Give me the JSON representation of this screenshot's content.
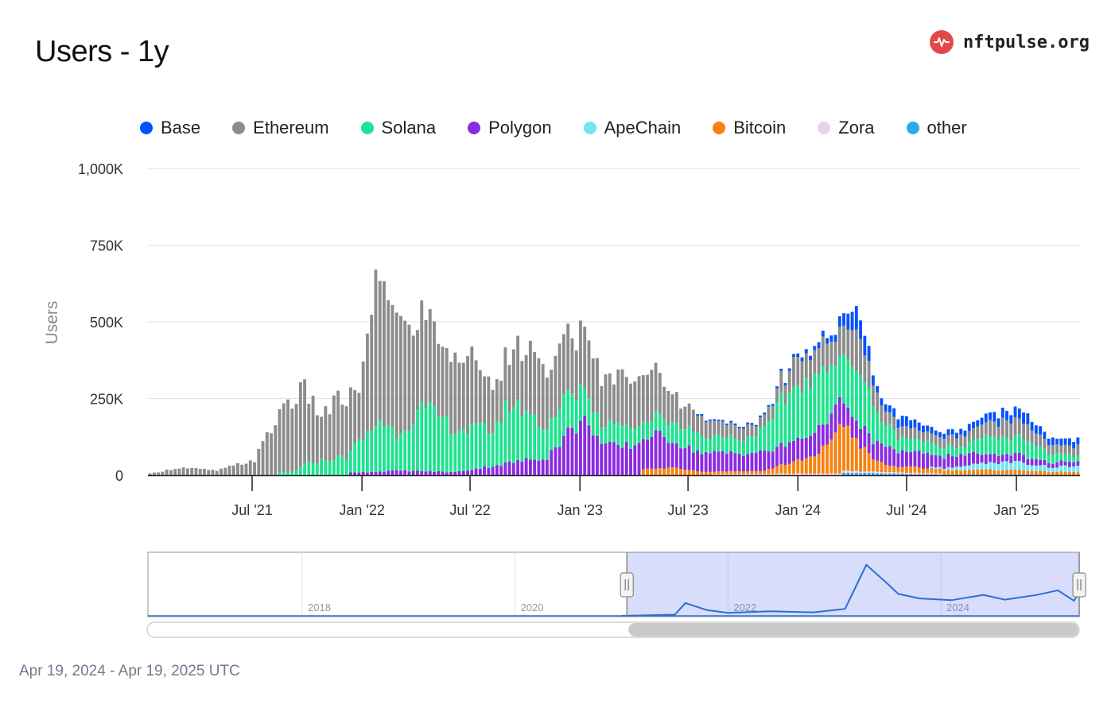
{
  "header": {
    "title": "Users - 1y",
    "brand_name": "nftpulse.org",
    "brand_icon": "pulse-heartbeat-icon",
    "brand_color": "#e24a4a"
  },
  "legend": [
    {
      "label": "Base",
      "color": "#0052ff"
    },
    {
      "label": "Ethereum",
      "color": "#8c8c8c"
    },
    {
      "label": "Solana",
      "color": "#1ee38f"
    },
    {
      "label": "Polygon",
      "color": "#8a2be2"
    },
    {
      "label": "ApeChain",
      "color": "#6ee7f0"
    },
    {
      "label": "Bitcoin",
      "color": "#f7820f"
    },
    {
      "label": "Zora",
      "color": "#e8d1f0"
    },
    {
      "label": "other",
      "color": "#2fa8f0"
    }
  ],
  "chart_data": {
    "type": "bar",
    "stacked": true,
    "ylabel": "Users",
    "y_ticks": [
      "0",
      "250K",
      "500K",
      "750K",
      "1,000K"
    ],
    "ylim": [
      0,
      1000000
    ],
    "x_ticks": [
      "Jul '21",
      "Jan '22",
      "Jul '22",
      "Jan '23",
      "Jul '23",
      "Jan '24",
      "Jul '24",
      "Jan '25"
    ],
    "x_tick_dates": [
      "2021-07-01",
      "2022-01-01",
      "2022-07-01",
      "2023-01-01",
      "2023-07-01",
      "2024-01-01",
      "2024-07-01",
      "2025-01-01"
    ],
    "x_range": [
      "2021-01-11",
      "2025-04-14"
    ],
    "bar_interval": "weekly",
    "grid": true,
    "legend_position": "top",
    "series": [
      {
        "name": "Base",
        "color": "#0052ff",
        "values": {
          "2023-08-07": 5000,
          "2023-10-02": 5000,
          "2023-12-04": 6000,
          "2024-01-29": 15000,
          "2024-03-04": 25000,
          "2024-04-01": 55000,
          "2024-04-08": 70000,
          "2024-04-22": 60000,
          "2024-04-29": 45000,
          "2024-05-06": 30000,
          "2024-05-20": 20000,
          "2024-06-24": 30000,
          "2024-07-08": 30000,
          "2024-09-02": 15000,
          "2024-11-04": 25000,
          "2024-12-09": 30000,
          "2025-01-13": 35000,
          "2025-02-10": 25000,
          "2025-03-31": 20000
        }
      },
      {
        "name": "Ethereum",
        "color": "#8c8c8c",
        "values": {
          "2021-01-11": 5000,
          "2021-03-01": 25000,
          "2021-05-03": 15000,
          "2021-07-05": 50000,
          "2021-08-02": 150000,
          "2021-08-30": 240000,
          "2021-09-27": 235000,
          "2021-10-25": 150000,
          "2021-11-22": 190000,
          "2021-12-27": 170000,
          "2022-01-10": 290000,
          "2022-01-24": 440000,
          "2022-02-07": 480000,
          "2022-02-21": 420000,
          "2022-03-21": 310000,
          "2022-04-18": 290000,
          "2022-05-30": 230000,
          "2022-06-27": 240000,
          "2022-07-25": 180000,
          "2022-09-05": 150000,
          "2022-10-03": 210000,
          "2022-11-07": 180000,
          "2022-12-19": 200000,
          "2023-01-16": 170000,
          "2023-02-20": 150000,
          "2023-04-03": 180000,
          "2023-05-15": 130000,
          "2023-06-26": 70000,
          "2023-08-28": 50000,
          "2023-10-30": 30000,
          "2024-01-01": 90000,
          "2024-02-12": 90000,
          "2024-03-11": 90000,
          "2024-04-08": 120000,
          "2024-05-27": 40000,
          "2024-08-26": 30000,
          "2024-11-25": 50000,
          "2025-01-06": 60000,
          "2025-02-24": 30000,
          "2025-03-31": 30000
        }
      },
      {
        "name": "Solana",
        "color": "#1ee38f",
        "values": {
          "2021-09-06": 10000,
          "2021-10-04": 40000,
          "2021-11-01": 50000,
          "2021-12-06": 60000,
          "2022-01-03": 110000,
          "2022-01-31": 170000,
          "2022-02-28": 120000,
          "2022-04-11": 200000,
          "2022-05-09": 180000,
          "2022-06-06": 140000,
          "2022-07-11": 130000,
          "2022-08-08": 120000,
          "2022-09-05": 190000,
          "2022-10-03": 160000,
          "2022-11-07": 100000,
          "2022-12-05": 120000,
          "2023-01-09": 100000,
          "2023-02-06": 60000,
          "2023-03-06": 70000,
          "2023-04-03": 60000,
          "2023-05-08": 60000,
          "2023-06-05": 60000,
          "2023-07-03": 70000,
          "2023-08-07": 50000,
          "2023-09-04": 50000,
          "2023-10-02": 50000,
          "2023-11-06": 70000,
          "2023-12-04": 140000,
          "2024-01-01": 180000,
          "2024-02-05": 170000,
          "2024-03-04": 150000,
          "2024-04-01": 170000,
          "2024-04-22": 150000,
          "2024-05-20": 80000,
          "2024-06-17": 50000,
          "2024-07-15": 40000,
          "2024-09-02": 30000,
          "2024-10-07": 30000,
          "2024-11-04": 60000,
          "2024-12-02": 50000,
          "2025-01-06": 60000,
          "2025-02-03": 40000,
          "2025-03-03": 30000,
          "2025-04-07": 20000
        }
      },
      {
        "name": "Polygon",
        "color": "#8a2be2",
        "values": {
          "2022-01-03": 10000,
          "2022-03-07": 15000,
          "2022-06-06": 10000,
          "2022-09-05": 40000,
          "2022-11-07": 60000,
          "2022-12-12": 140000,
          "2023-01-16": 180000,
          "2023-02-06": 100000,
          "2023-03-06": 90000,
          "2023-04-03": 100000,
          "2023-05-08": 110000,
          "2023-06-05": 90000,
          "2023-07-03": 70000,
          "2023-08-07": 60000,
          "2023-09-04": 60000,
          "2023-10-02": 60000,
          "2023-11-06": 60000,
          "2023-12-04": 60000,
          "2024-01-01": 70000,
          "2024-02-05": 80000,
          "2024-03-04": 80000,
          "2024-04-01": 60000,
          "2024-05-06": 60000,
          "2024-06-03": 55000,
          "2024-07-01": 50000,
          "2024-08-05": 45000,
          "2024-09-02": 40000,
          "2024-10-07": 35000,
          "2024-11-04": 30000,
          "2024-12-02": 25000,
          "2025-01-06": 25000,
          "2025-02-03": 20000,
          "2025-03-03": 15000,
          "2025-04-07": 15000
        }
      },
      {
        "name": "ApeChain",
        "color": "#6ee7f0",
        "values": {
          "2024-09-02": 5000,
          "2024-10-07": 15000,
          "2024-11-04": 20000,
          "2024-12-02": 25000,
          "2025-01-06": 25000,
          "2025-02-03": 20000,
          "2025-03-03": 15000,
          "2025-04-07": 20000
        }
      },
      {
        "name": "Bitcoin",
        "color": "#f7820f",
        "values": {
          "2023-05-08": 20000,
          "2023-06-05": 25000,
          "2023-08-07": 10000,
          "2023-11-06": 10000,
          "2023-12-04": 30000,
          "2024-01-01": 40000,
          "2024-02-05": 60000,
          "2024-03-04": 140000,
          "2024-03-25": 150000,
          "2024-04-08": 100000,
          "2024-05-06": 40000,
          "2024-06-03": 20000,
          "2024-09-02": 15000,
          "2024-12-02": 15000,
          "2025-04-07": 10000
        }
      },
      {
        "name": "Zora",
        "color": "#e8d1f0",
        "values": {
          "2023-09-04": 3000,
          "2024-01-01": 5000,
          "2024-04-01": 5000,
          "2024-08-05": 3000
        }
      },
      {
        "name": "other",
        "color": "#2fa8f0",
        "values": {
          "2024-04-08": 8000,
          "2024-09-02": 2000,
          "2025-01-06": 3000
        }
      }
    ]
  },
  "navigator": {
    "year_labels": [
      "2018",
      "2020",
      "2022",
      "2024"
    ],
    "year_values": [
      2018,
      2020,
      2022,
      2024
    ],
    "range_start_value": 2021.05,
    "range_end_value": 2025.3,
    "full_range": [
      2016.55,
      2025.3
    ]
  },
  "footer": {
    "date_range": "Apr 19, 2024 - Apr 19, 2025 UTC"
  }
}
